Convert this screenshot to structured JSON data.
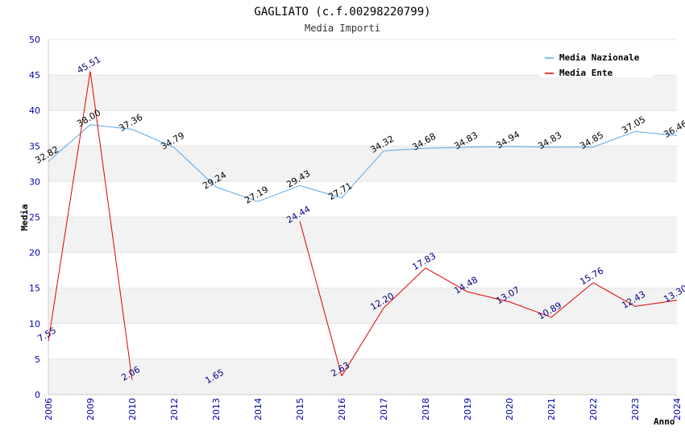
{
  "chart_data": {
    "type": "line",
    "title": "GAGLIATO (c.f.00298220799)",
    "subtitle": "Media Importi",
    "xlabel": "Anno",
    "ylabel": "Media",
    "ylim": [
      0,
      50
    ],
    "yticks": [
      0,
      5,
      10,
      15,
      20,
      25,
      30,
      35,
      40,
      45,
      50
    ],
    "categories": [
      "2006",
      "2009",
      "2010",
      "2012",
      "2013",
      "2014",
      "2015",
      "2016",
      "2017",
      "2018",
      "2019",
      "2020",
      "2021",
      "2022",
      "2023",
      "2024"
    ],
    "grid": "horizontal-bands",
    "legend_position": "top-right",
    "series": [
      {
        "name": "Media Nazionale",
        "color": "#5aa7e6",
        "label_color": "#000000",
        "values": [
          32.82,
          38.0,
          37.36,
          34.79,
          29.24,
          27.19,
          29.43,
          27.71,
          34.32,
          34.68,
          34.83,
          34.94,
          34.83,
          34.85,
          37.05,
          36.46
        ],
        "labels": [
          "32.82",
          "38.00",
          "37.36",
          "34.79",
          "29.24",
          "27.19",
          "29.43",
          "27.71",
          "34.32",
          "34.68",
          "34.83",
          "34.94",
          "34.83",
          "34.85",
          "37.05",
          "36.46"
        ]
      },
      {
        "name": "Media Ente",
        "color": "#e00000",
        "label_color": "#000080",
        "values": [
          7.55,
          45.51,
          2.06,
          null,
          1.65,
          null,
          24.44,
          2.63,
          12.2,
          17.83,
          14.48,
          13.07,
          10.89,
          15.76,
          12.43,
          13.3
        ],
        "labels": [
          "7.55",
          "45.51",
          "2.06",
          null,
          "1.65",
          null,
          "24.44",
          "2.63",
          "12.20",
          "17.83",
          "14.48",
          "13.07",
          "10.89",
          "15.76",
          "12.43",
          "13.30"
        ],
        "line_breaks_after": [
          "2010",
          "2013"
        ]
      }
    ]
  }
}
